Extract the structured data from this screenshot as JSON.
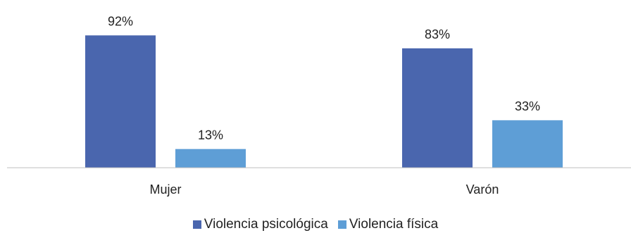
{
  "chart_data": {
    "type": "bar",
    "title": "",
    "xlabel": "",
    "ylabel": "",
    "categories": [
      "Mujer",
      "Varón"
    ],
    "series": [
      {
        "name": "Violencia psicológica",
        "values": [
          92,
          83
        ],
        "labels": [
          "92%",
          "83%"
        ],
        "color": "#4A66AE"
      },
      {
        "name": "Violencia física",
        "values": [
          13,
          33
        ],
        "labels": [
          "13%",
          "33%"
        ],
        "color": "#5E9ED6"
      }
    ],
    "ylim": [
      0,
      100
    ],
    "grid": false,
    "legend_position": "bottom"
  }
}
